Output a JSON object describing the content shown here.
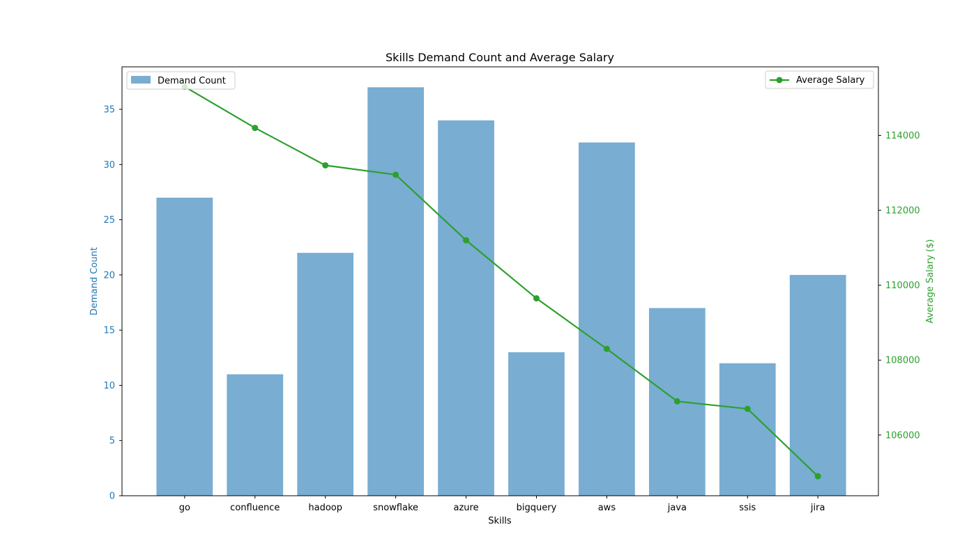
{
  "colors": {
    "bar_fill": "#1f77b4",
    "bar_opacity": 0.6,
    "line": "#2ca02c",
    "left_axis": "#1f77b4",
    "right_axis": "#2ca02c",
    "frame": "#000000",
    "legend_border": "#cccccc"
  },
  "chart_data": {
    "type": "bar",
    "title": "Skills Demand Count and Average Salary",
    "xlabel": "Skills",
    "ylabel": "Demand Count",
    "ylabel_right": "Average Salary ($)",
    "categories": [
      "go",
      "confluence",
      "hadoop",
      "snowflake",
      "azure",
      "bigquery",
      "aws",
      "java",
      "ssis",
      "jira"
    ],
    "series": [
      {
        "name": "Demand Count",
        "type": "bar",
        "axis": "left",
        "values": [
          27,
          11,
          22,
          37,
          34,
          13,
          32,
          17,
          12,
          20
        ]
      },
      {
        "name": "Average Salary",
        "type": "line",
        "axis": "right",
        "marker": "circle",
        "values": [
          115300,
          114200,
          113200,
          112950,
          111200,
          109650,
          108300,
          106900,
          106700,
          104900
        ]
      }
    ],
    "ylim": [
      0,
      38.85
    ],
    "yticks": [
      0,
      5,
      10,
      15,
      20,
      25,
      30,
      35
    ],
    "ylim_right": [
      104380,
      115830
    ],
    "yticks_right": [
      106000,
      108000,
      110000,
      112000,
      114000
    ],
    "grid": false,
    "legend_left": "top-left",
    "legend_right": "top-right"
  }
}
